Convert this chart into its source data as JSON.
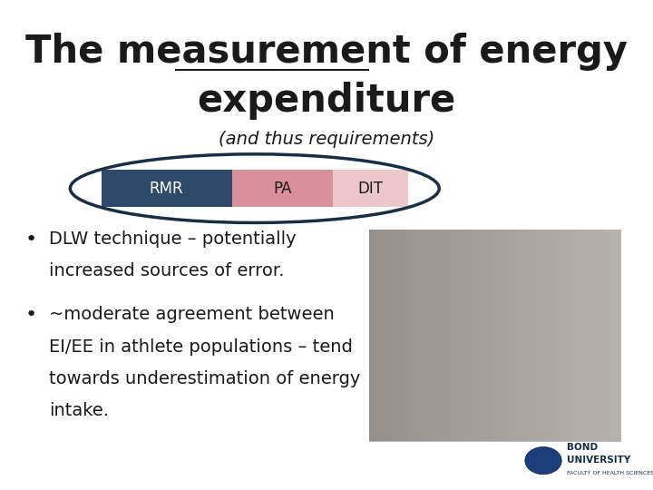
{
  "title_line1_pre": "The ",
  "title_line1_underline": "measurement",
  "title_line1_post": " of energy",
  "title_line2": "expenditure",
  "subtitle": "(and thus requirements)",
  "rmr_label": "RMR",
  "pa_label": "PA",
  "dit_label": "DIT",
  "rmr_color": "#2d4a6b",
  "pa_color": "#d9909a",
  "dit_color": "#ecc8cc",
  "ellipse_color": "#1a2e42",
  "bullet1_line1": "DLW technique – potentially",
  "bullet1_line2": "increased sources of error.",
  "bullet2_line1": "~moderate agreement between",
  "bullet2_line2": "EI/EE in athlete populations – tend",
  "bullet2_line3": "towards underestimation of energy",
  "bullet2_line4": "intake.",
  "background_color": "#ffffff",
  "text_color": "#1a1a1a",
  "title_fontsize": 30,
  "subtitle_fontsize": 14,
  "bullet_fontsize": 14
}
